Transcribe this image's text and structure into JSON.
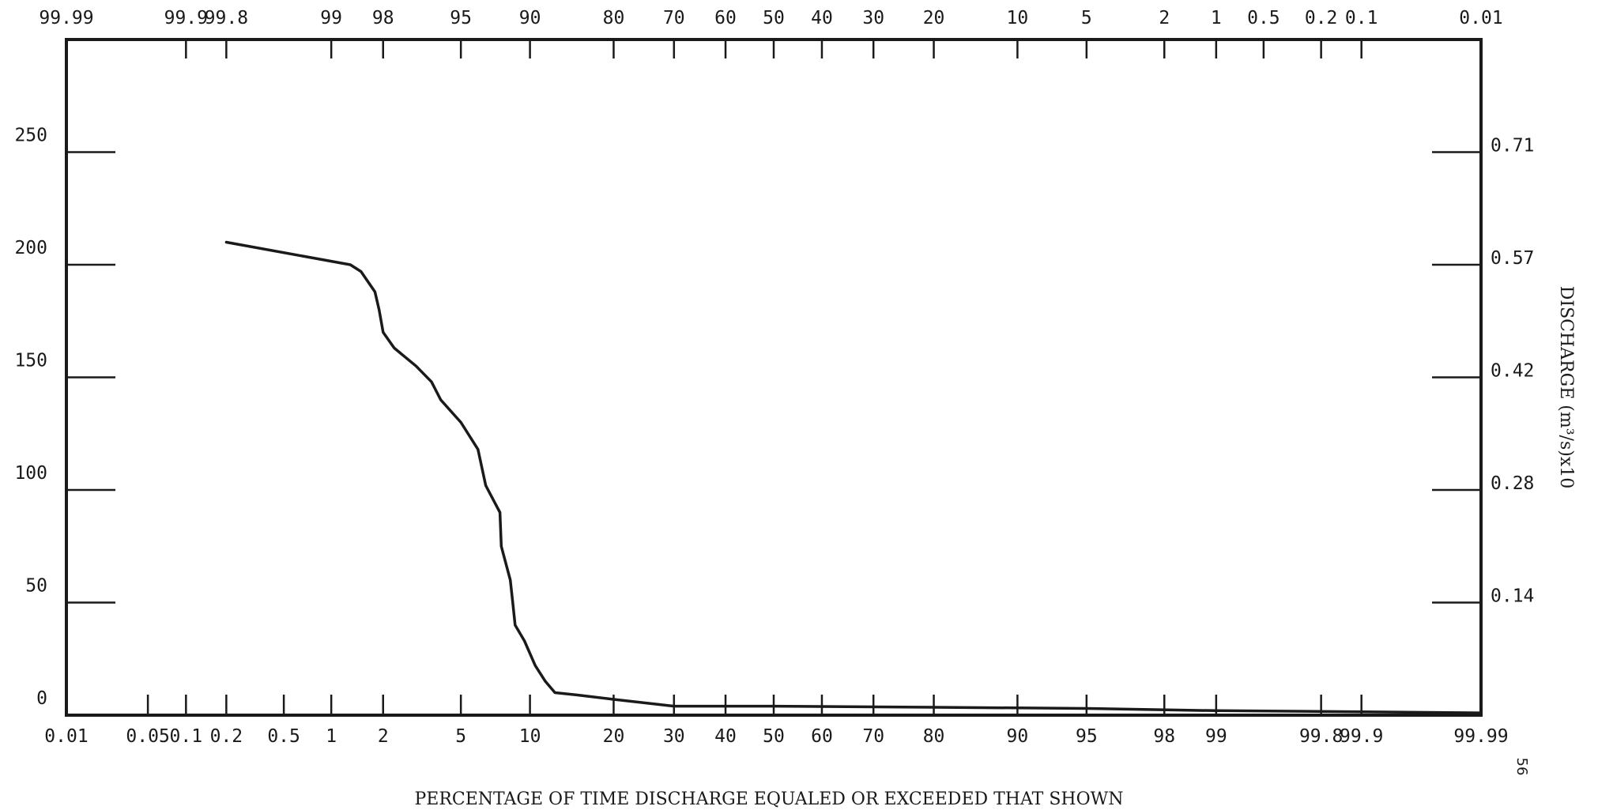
{
  "chart_data": {
    "type": "line",
    "title": "",
    "xlabel": "PERCENTAGE OF TIME DISCHARGE EQUALED OR EXCEEDED THAT SHOWN",
    "ylabel": "",
    "y2label": "DISCHARGE (m³/s)x10",
    "x_scale": "probability",
    "xlim": [
      0.01,
      99.99
    ],
    "ylim": [
      0,
      300
    ],
    "grid": false,
    "x_ticks_bottom": [
      "0.01",
      "0.05",
      "0.1",
      "0.2",
      "0.5",
      "1",
      "2",
      "5",
      "10",
      "20",
      "30",
      "40",
      "50",
      "60",
      "70",
      "80",
      "90",
      "95",
      "98",
      "99",
      "99.8",
      "99.9",
      "99.99"
    ],
    "x_ticks_top": [
      "99.99",
      "99.9",
      "99.8",
      "99",
      "98",
      "95",
      "90",
      "80",
      "70",
      "60",
      "50",
      "40",
      "30",
      "20",
      "10",
      "5",
      "2",
      "1",
      "0.5",
      "0.2",
      "0.1",
      "0.01"
    ],
    "y_ticks_left": [
      "0",
      "50",
      "100",
      "150",
      "200",
      "250"
    ],
    "y_ticks_right": [
      {
        "y": 50,
        "label": "0.14"
      },
      {
        "y": 100,
        "label": "0.28"
      },
      {
        "y": 150,
        "label": "0.42"
      },
      {
        "y": 200,
        "label": "0.57"
      },
      {
        "y": 250,
        "label": "0.71"
      }
    ],
    "series": [
      {
        "color": "#1a1a1a",
        "points": [
          {
            "x": 0.2,
            "y": 210
          },
          {
            "x": 1.3,
            "y": 200
          },
          {
            "x": 1.5,
            "y": 197
          },
          {
            "x": 1.8,
            "y": 188
          },
          {
            "x": 1.9,
            "y": 180
          },
          {
            "x": 2.0,
            "y": 170
          },
          {
            "x": 2.3,
            "y": 163
          },
          {
            "x": 3.0,
            "y": 155
          },
          {
            "x": 3.6,
            "y": 148
          },
          {
            "x": 4.0,
            "y": 140
          },
          {
            "x": 5.0,
            "y": 130
          },
          {
            "x": 6.0,
            "y": 118
          },
          {
            "x": 6.5,
            "y": 102
          },
          {
            "x": 7.5,
            "y": 90
          },
          {
            "x": 7.6,
            "y": 75
          },
          {
            "x": 8.3,
            "y": 60
          },
          {
            "x": 8.5,
            "y": 50
          },
          {
            "x": 8.7,
            "y": 40
          },
          {
            "x": 9.5,
            "y": 33
          },
          {
            "x": 10.5,
            "y": 22
          },
          {
            "x": 11.5,
            "y": 15
          },
          {
            "x": 12.5,
            "y": 10
          },
          {
            "x": 15.0,
            "y": 9
          },
          {
            "x": 20.0,
            "y": 7
          },
          {
            "x": 30.0,
            "y": 4
          },
          {
            "x": 50.0,
            "y": 4
          },
          {
            "x": 80.0,
            "y": 3.5
          },
          {
            "x": 95.0,
            "y": 3
          },
          {
            "x": 99.0,
            "y": 2
          },
          {
            "x": 99.9,
            "y": 1.5
          },
          {
            "x": 99.99,
            "y": 1
          }
        ]
      }
    ],
    "annotations": [
      "56"
    ]
  }
}
